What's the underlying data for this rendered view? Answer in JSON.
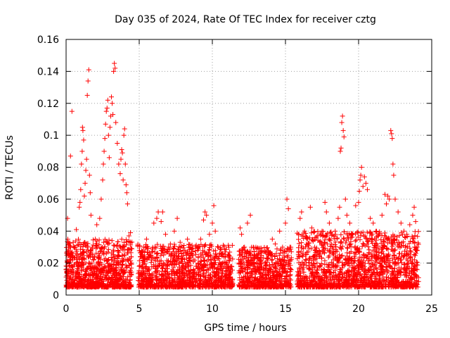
{
  "chart_data": {
    "type": "scatter",
    "title": "Day 035 of 2024, Rate Of TEC Index for receiver cztg",
    "xlabel": "GPS time / hours",
    "ylabel": "ROTI / TECUs",
    "xlim": [
      0,
      25
    ],
    "ylim": [
      0,
      0.16
    ],
    "xticks": [
      0,
      5,
      10,
      15,
      20,
      25
    ],
    "xtick_labels": [
      "0",
      "5",
      "10",
      "15",
      "20",
      "25"
    ],
    "yticks": [
      0,
      0.02,
      0.04,
      0.06,
      0.08,
      0.1,
      0.12,
      0.14,
      0.16
    ],
    "ytick_labels": [
      "0",
      "0.02",
      "0.04",
      "0.06",
      "0.08",
      "0.1",
      "0.12",
      "0.14",
      "0.16"
    ],
    "grid": true,
    "marker": "+",
    "color": "#ff0000",
    "series": [
      {
        "name": "ROTI",
        "points": [
          [
            0.05,
            0.025
          ],
          [
            0.1,
            0.048
          ],
          [
            0.15,
            0.032
          ],
          [
            0.2,
            0.018
          ],
          [
            0.25,
            0.03
          ],
          [
            0.3,
            0.087
          ],
          [
            0.4,
            0.115
          ],
          [
            0.45,
            0.022
          ],
          [
            0.5,
            0.014
          ],
          [
            0.6,
            0.03
          ],
          [
            0.7,
            0.041
          ],
          [
            0.8,
            0.02
          ],
          [
            0.9,
            0.055
          ],
          [
            0.95,
            0.058
          ],
          [
            1.0,
            0.066
          ],
          [
            1.05,
            0.082
          ],
          [
            1.1,
            0.09
          ],
          [
            1.12,
            0.105
          ],
          [
            1.15,
            0.103
          ],
          [
            1.2,
            0.097
          ],
          [
            1.25,
            0.062
          ],
          [
            1.3,
            0.07
          ],
          [
            1.35,
            0.078
          ],
          [
            1.4,
            0.085
          ],
          [
            1.45,
            0.125
          ],
          [
            1.5,
            0.134
          ],
          [
            1.55,
            0.141
          ],
          [
            1.6,
            0.075
          ],
          [
            1.65,
            0.064
          ],
          [
            1.7,
            0.05
          ],
          [
            1.8,
            0.03
          ],
          [
            1.9,
            0.022
          ],
          [
            2.0,
            0.035
          ],
          [
            2.1,
            0.044
          ],
          [
            2.2,
            0.026
          ],
          [
            2.3,
            0.048
          ],
          [
            2.4,
            0.06
          ],
          [
            2.5,
            0.072
          ],
          [
            2.55,
            0.082
          ],
          [
            2.6,
            0.09
          ],
          [
            2.65,
            0.098
          ],
          [
            2.7,
            0.107
          ],
          [
            2.75,
            0.115
          ],
          [
            2.8,
            0.117
          ],
          [
            2.85,
            0.122
          ],
          [
            2.9,
            0.1
          ],
          [
            2.95,
            0.086
          ],
          [
            3.0,
            0.105
          ],
          [
            3.05,
            0.112
          ],
          [
            3.1,
            0.124
          ],
          [
            3.15,
            0.12
          ],
          [
            3.2,
            0.113
          ],
          [
            3.25,
            0.14
          ],
          [
            3.3,
            0.145
          ],
          [
            3.35,
            0.142
          ],
          [
            3.4,
            0.108
          ],
          [
            3.5,
            0.095
          ],
          [
            3.6,
            0.082
          ],
          [
            3.7,
            0.076
          ],
          [
            3.75,
            0.085
          ],
          [
            3.8,
            0.091
          ],
          [
            3.85,
            0.089
          ],
          [
            3.9,
            0.072
          ],
          [
            3.95,
            0.1
          ],
          [
            4.0,
            0.104
          ],
          [
            4.05,
            0.082
          ],
          [
            4.1,
            0.069
          ],
          [
            4.15,
            0.064
          ],
          [
            4.2,
            0.057
          ],
          [
            4.3,
            0.037
          ],
          [
            4.4,
            0.039
          ],
          [
            4.45,
            0.02
          ],
          [
            5.0,
            0.018
          ],
          [
            5.3,
            0.03
          ],
          [
            5.5,
            0.035
          ],
          [
            5.8,
            0.025
          ],
          [
            6.0,
            0.045
          ],
          [
            6.2,
            0.048
          ],
          [
            6.3,
            0.052
          ],
          [
            6.5,
            0.046
          ],
          [
            6.6,
            0.052
          ],
          [
            6.8,
            0.038
          ],
          [
            7.0,
            0.03
          ],
          [
            7.2,
            0.025
          ],
          [
            7.4,
            0.04
          ],
          [
            7.6,
            0.048
          ],
          [
            7.8,
            0.033
          ],
          [
            8.0,
            0.028
          ],
          [
            8.3,
            0.035
          ],
          [
            8.5,
            0.03
          ],
          [
            8.7,
            0.022
          ],
          [
            9.0,
            0.028
          ],
          [
            9.2,
            0.035
          ],
          [
            9.4,
            0.047
          ],
          [
            9.5,
            0.052
          ],
          [
            9.6,
            0.05
          ],
          [
            9.8,
            0.038
          ],
          [
            10.0,
            0.045
          ],
          [
            10.1,
            0.056
          ],
          [
            10.2,
            0.04
          ],
          [
            10.4,
            0.03
          ],
          [
            10.6,
            0.026
          ],
          [
            10.8,
            0.024
          ],
          [
            11.0,
            0.02
          ],
          [
            11.3,
            0.018
          ],
          [
            11.9,
            0.042
          ],
          [
            12.0,
            0.038
          ],
          [
            12.2,
            0.03
          ],
          [
            12.4,
            0.045
          ],
          [
            12.6,
            0.05
          ],
          [
            12.8,
            0.03
          ],
          [
            13.0,
            0.025
          ],
          [
            13.3,
            0.022
          ],
          [
            13.6,
            0.02
          ],
          [
            13.9,
            0.018
          ],
          [
            14.1,
            0.035
          ],
          [
            14.3,
            0.032
          ],
          [
            14.6,
            0.04
          ],
          [
            14.8,
            0.03
          ],
          [
            15.0,
            0.045
          ],
          [
            15.1,
            0.06
          ],
          [
            15.2,
            0.054
          ],
          [
            15.3,
            0.03
          ],
          [
            15.9,
            0.038
          ],
          [
            16.0,
            0.048
          ],
          [
            16.1,
            0.052
          ],
          [
            16.3,
            0.04
          ],
          [
            16.5,
            0.035
          ],
          [
            16.7,
            0.055
          ],
          [
            16.8,
            0.042
          ],
          [
            17.0,
            0.03
          ],
          [
            17.3,
            0.028
          ],
          [
            17.5,
            0.04
          ],
          [
            17.7,
            0.058
          ],
          [
            17.8,
            0.052
          ],
          [
            18.0,
            0.045
          ],
          [
            18.2,
            0.038
          ],
          [
            18.4,
            0.04
          ],
          [
            18.6,
            0.048
          ],
          [
            18.7,
            0.055
          ],
          [
            18.75,
            0.09
          ],
          [
            18.8,
            0.092
          ],
          [
            18.85,
            0.108
          ],
          [
            18.9,
            0.112
          ],
          [
            18.95,
            0.103
          ],
          [
            19.0,
            0.099
          ],
          [
            19.1,
            0.06
          ],
          [
            19.2,
            0.05
          ],
          [
            19.4,
            0.045
          ],
          [
            19.6,
            0.038
          ],
          [
            19.8,
            0.056
          ],
          [
            20.0,
            0.058
          ],
          [
            20.05,
            0.065
          ],
          [
            20.1,
            0.072
          ],
          [
            20.15,
            0.075
          ],
          [
            20.2,
            0.08
          ],
          [
            20.3,
            0.068
          ],
          [
            20.4,
            0.074
          ],
          [
            20.5,
            0.07
          ],
          [
            20.6,
            0.066
          ],
          [
            20.8,
            0.048
          ],
          [
            21.0,
            0.045
          ],
          [
            21.2,
            0.04
          ],
          [
            21.4,
            0.038
          ],
          [
            21.6,
            0.05
          ],
          [
            21.8,
            0.063
          ],
          [
            21.9,
            0.057
          ],
          [
            22.0,
            0.062
          ],
          [
            22.1,
            0.06
          ],
          [
            22.2,
            0.103
          ],
          [
            22.25,
            0.101
          ],
          [
            22.3,
            0.098
          ],
          [
            22.35,
            0.082
          ],
          [
            22.4,
            0.075
          ],
          [
            22.5,
            0.06
          ],
          [
            22.7,
            0.052
          ],
          [
            22.9,
            0.045
          ],
          [
            23.1,
            0.04
          ],
          [
            23.3,
            0.038
          ],
          [
            23.5,
            0.044
          ],
          [
            23.7,
            0.05
          ],
          [
            23.8,
            0.055
          ],
          [
            23.9,
            0.046
          ],
          [
            24.0,
            0.03
          ]
        ]
      }
    ],
    "dense_bands": [
      {
        "x": [
          0.0,
          4.5
        ],
        "y": [
          0.005,
          0.035
        ],
        "count": 900
      },
      {
        "x": [
          4.9,
          11.4
        ],
        "y": [
          0.005,
          0.032
        ],
        "count": 1100
      },
      {
        "x": [
          11.8,
          15.4
        ],
        "y": [
          0.005,
          0.03
        ],
        "count": 650
      },
      {
        "x": [
          15.8,
          24.1
        ],
        "y": [
          0.005,
          0.04
        ],
        "count": 1500
      }
    ]
  }
}
